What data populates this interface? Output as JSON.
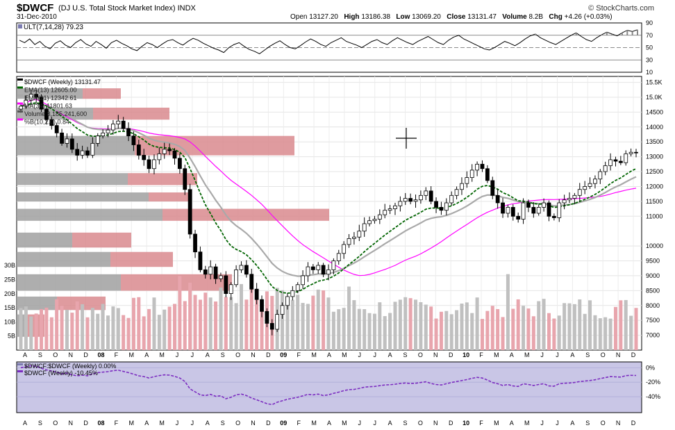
{
  "header": {
    "ticker": "$DWCF",
    "name": "(DJ U.S. Total Stock Market Index) INDX",
    "date": "31-Dec-2010",
    "open_label": "Open",
    "open": "13127.20",
    "high_label": "High",
    "high": "13186.38",
    "low_label": "Low",
    "low": "13069.20",
    "close_label": "Close",
    "close": "13131.47",
    "volume_label": "Volume",
    "volume": "8.2B",
    "chg_label": "Chg",
    "chg": "+4.26 (+0.03%)",
    "brand": "© StockCharts.com"
  },
  "colors": {
    "ema13": "#006400",
    "ema21": "#a9a9a9",
    "ma34": "#ff00ff",
    "volume_up": "#c0c0c0",
    "volume_down": "#e8a5ad",
    "profile_up": "#a0a0a0",
    "profile_down": "#d98a8e",
    "perf_band": "#c9c6e6",
    "perf_line": "#7b2cc0"
  },
  "chart_data": [
    {
      "type": "line",
      "title": "ULT(7,14,28) 79.23",
      "legend_label": "ULT(7,14,28) 79.23",
      "ylim": [
        10,
        90
      ],
      "yticks": [
        90,
        70,
        50,
        30,
        10
      ],
      "reference_lines": [
        70,
        50,
        30
      ],
      "series": [
        {
          "values": [
            62,
            58,
            64,
            55,
            60,
            52,
            48,
            57,
            61,
            54,
            50,
            58,
            63,
            56,
            52,
            60,
            55,
            49,
            58,
            62,
            57,
            53,
            48,
            45,
            52,
            58,
            55,
            50,
            56,
            61,
            63,
            58,
            54,
            60,
            65,
            62,
            57,
            53,
            49,
            46,
            42,
            50,
            55,
            58,
            52,
            47,
            44,
            40,
            46,
            52,
            57,
            61,
            55,
            50,
            48,
            53,
            59,
            64,
            60,
            55,
            52,
            58,
            62,
            66,
            60,
            57,
            54,
            50,
            55,
            60,
            63,
            58,
            55,
            61,
            66,
            62,
            58,
            55,
            60,
            64,
            68,
            63,
            58,
            55,
            62,
            67,
            70,
            64,
            60,
            56,
            52,
            48,
            46,
            50,
            55,
            60,
            57,
            53,
            58,
            64,
            69,
            72,
            66,
            62,
            58,
            55,
            60,
            65,
            70,
            74,
            68,
            63,
            60,
            66,
            71,
            75,
            72,
            69,
            74,
            78,
            76,
            79
          ]
        }
      ]
    },
    {
      "type": "candlestick",
      "title": "$DWCF (Weekly) 13131.47",
      "legend": [
        "$DWCF (Weekly) 13131.47",
        "EMA(13) 12605.00",
        "EMA(21) 12342.61",
        "MA(34) 11801.63",
        "Volume 8,185,241,600",
        "%B(10,2.0) 0.84"
      ],
      "ylim": [
        6500,
        15700
      ],
      "yticks": [
        15500,
        15000,
        14500,
        14000,
        13500,
        13000,
        12500,
        12000,
        11500,
        11000,
        10000,
        9500,
        9000,
        8500,
        8000,
        7500,
        7000
      ],
      "ytick_labels": [
        "15.5K",
        "15.0K",
        "14500",
        "14000",
        "13500",
        "13000",
        "12500",
        "12000",
        "11500",
        "11000",
        "10000",
        "9500",
        "9000",
        "8500",
        "8000",
        "7500",
        "7000"
      ],
      "volume_ticks": [
        "30B",
        "25B",
        "20B",
        "15B",
        "10B",
        "5B"
      ],
      "volume_max": 32,
      "x_labels": [
        "A",
        "S",
        "O",
        "N",
        "D",
        "08",
        "F",
        "M",
        "A",
        "M",
        "J",
        "J",
        "A",
        "S",
        "O",
        "N",
        "D",
        "09",
        "F",
        "M",
        "A",
        "M",
        "J",
        "J",
        "A",
        "S",
        "O",
        "N",
        "D",
        "10",
        "F",
        "M",
        "A",
        "M",
        "J",
        "J",
        "A",
        "S",
        "O",
        "N",
        "D"
      ],
      "closes": [
        14700,
        14900,
        15100,
        15000,
        14600,
        14250,
        14050,
        13800,
        13450,
        13600,
        13250,
        13050,
        13200,
        13050,
        13450,
        13700,
        13800,
        13900,
        14100,
        14200,
        13950,
        13700,
        13400,
        13050,
        12900,
        12600,
        12900,
        13100,
        13250,
        13200,
        12950,
        12600,
        11900,
        10400,
        9800,
        9200,
        9050,
        9300,
        8900,
        9000,
        8400,
        8700,
        9200,
        9350,
        9050,
        8550,
        8200,
        7800,
        7400,
        7200,
        7700,
        8000,
        8300,
        8500,
        8700,
        9000,
        9300,
        9200,
        9350,
        9050,
        9200,
        9500,
        9750,
        10050,
        10250,
        10300,
        10500,
        10750,
        10850,
        10900,
        11050,
        11200,
        11250,
        11350,
        11500,
        11600,
        11500,
        11550,
        11700,
        11850,
        11500,
        11300,
        11200,
        11450,
        11700,
        11900,
        12100,
        12300,
        12550,
        12750,
        12600,
        12200,
        11700,
        11450,
        11100,
        11300,
        11000,
        10900,
        11450,
        11300,
        11100,
        11300,
        11450,
        11000,
        10950,
        11450,
        11550,
        11600,
        11700,
        11900,
        12000,
        12100,
        12250,
        12500,
        12700,
        12900,
        12850,
        12800,
        13100,
        13150,
        13131
      ]
    },
    {
      "type": "area",
      "title": "$DWCF:$DWCF (Weekly) 0.00%",
      "legend": [
        "$DWCF:$DWCF (Weekly) 0.00%",
        "$DWCF (Weekly) -10.45%"
      ],
      "ylim": [
        -62,
        8
      ],
      "yticks": [
        "0%",
        "-20%",
        "-40%"
      ],
      "ytick_values": [
        0,
        -20,
        -40
      ]
    }
  ]
}
